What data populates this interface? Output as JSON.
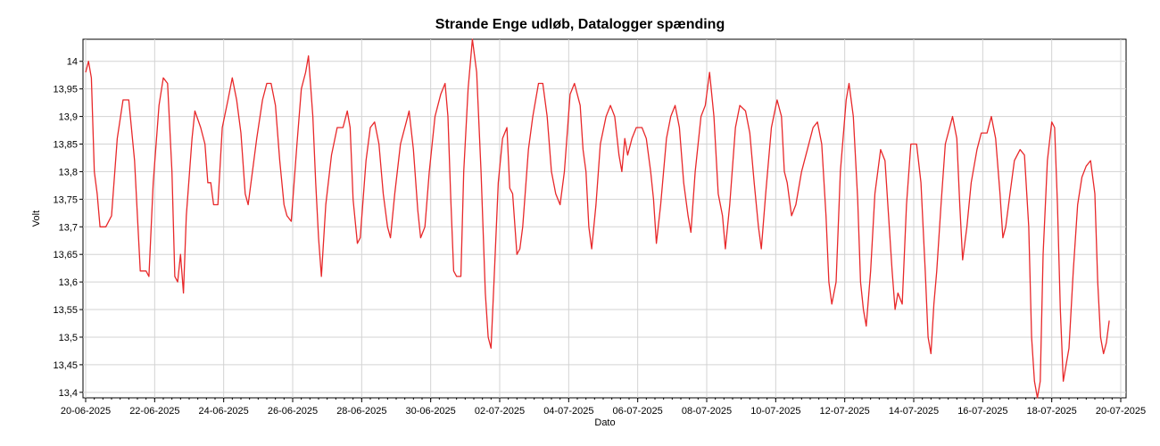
{
  "chart_data": {
    "type": "line",
    "title": "Strande Enge udløb, Datalogger spænding",
    "xlabel": "Dato",
    "ylabel": "Volt",
    "xlim": [
      "2025-06-20",
      "2025-07-20"
    ],
    "ylim": [
      13.39,
      14.04
    ],
    "x_ticks": [
      "20-06-2025",
      "22-06-2025",
      "24-06-2025",
      "26-06-2025",
      "28-06-2025",
      "30-06-2025",
      "02-07-2025",
      "04-07-2025",
      "06-07-2025",
      "08-07-2025",
      "10-07-2025",
      "12-07-2025",
      "14-07-2025",
      "16-07-2025",
      "18-07-2025",
      "20-07-2025"
    ],
    "y_ticks": [
      "14",
      "13,95",
      "13,9",
      "13,85",
      "13,8",
      "13,75",
      "13,7",
      "13,65",
      "13,6",
      "13,55",
      "13,5",
      "13,45",
      "13,4"
    ],
    "grid": true,
    "series": [
      {
        "name": "",
        "color": "#e8282a",
        "points": [
          [
            "2025-06-20 00:00",
            13.98
          ],
          [
            "2025-06-20 02:00",
            14.0
          ],
          [
            "2025-06-20 04:00",
            13.97
          ],
          [
            "2025-06-20 06:00",
            13.8
          ],
          [
            "2025-06-20 08:00",
            13.76
          ],
          [
            "2025-06-20 10:00",
            13.7
          ],
          [
            "2025-06-20 14:00",
            13.7
          ],
          [
            "2025-06-20 18:00",
            13.72
          ],
          [
            "2025-06-20 22:00",
            13.86
          ],
          [
            "2025-06-21 02:00",
            13.93
          ],
          [
            "2025-06-21 06:00",
            13.93
          ],
          [
            "2025-06-21 10:00",
            13.82
          ],
          [
            "2025-06-21 14:00",
            13.62
          ],
          [
            "2025-06-21 18:00",
            13.62
          ],
          [
            "2025-06-21 20:00",
            13.61
          ],
          [
            "2025-06-21 23:00",
            13.78
          ],
          [
            "2025-06-22 03:00",
            13.92
          ],
          [
            "2025-06-22 06:00",
            13.97
          ],
          [
            "2025-06-22 09:00",
            13.96
          ],
          [
            "2025-06-22 12:00",
            13.8
          ],
          [
            "2025-06-22 14:00",
            13.61
          ],
          [
            "2025-06-22 16:00",
            13.6
          ],
          [
            "2025-06-22 18:00",
            13.65
          ],
          [
            "2025-06-22 20:00",
            13.58
          ],
          [
            "2025-06-22 22:00",
            13.72
          ],
          [
            "2025-06-23 02:00",
            13.86
          ],
          [
            "2025-06-23 04:00",
            13.91
          ],
          [
            "2025-06-23 08:00",
            13.88
          ],
          [
            "2025-06-23 11:00",
            13.85
          ],
          [
            "2025-06-23 13:00",
            13.78
          ],
          [
            "2025-06-23 15:00",
            13.78
          ],
          [
            "2025-06-23 17:00",
            13.74
          ],
          [
            "2025-06-23 20:00",
            13.74
          ],
          [
            "2025-06-23 23:00",
            13.88
          ],
          [
            "2025-06-24 03:00",
            13.93
          ],
          [
            "2025-06-24 06:00",
            13.97
          ],
          [
            "2025-06-24 09:00",
            13.93
          ],
          [
            "2025-06-24 12:00",
            13.87
          ],
          [
            "2025-06-24 15:00",
            13.76
          ],
          [
            "2025-06-24 17:00",
            13.74
          ],
          [
            "2025-06-24 20:00",
            13.8
          ],
          [
            "2025-06-24 23:00",
            13.86
          ],
          [
            "2025-06-25 03:00",
            13.93
          ],
          [
            "2025-06-25 06:00",
            13.96
          ],
          [
            "2025-06-25 09:00",
            13.96
          ],
          [
            "2025-06-25 12:00",
            13.92
          ],
          [
            "2025-06-25 15:00",
            13.82
          ],
          [
            "2025-06-25 18:00",
            13.74
          ],
          [
            "2025-06-25 20:00",
            13.72
          ],
          [
            "2025-06-25 23:00",
            13.71
          ],
          [
            "2025-06-26 03:00",
            13.85
          ],
          [
            "2025-06-26 06:00",
            13.95
          ],
          [
            "2025-06-26 09:00",
            13.98
          ],
          [
            "2025-06-26 11:00",
            14.01
          ],
          [
            "2025-06-26 14:00",
            13.9
          ],
          [
            "2025-06-26 16:00",
            13.78
          ],
          [
            "2025-06-26 18:00",
            13.68
          ],
          [
            "2025-06-26 20:00",
            13.61
          ],
          [
            "2025-06-26 23:00",
            13.74
          ],
          [
            "2025-06-27 03:00",
            13.83
          ],
          [
            "2025-06-27 07:00",
            13.88
          ],
          [
            "2025-06-27 11:00",
            13.88
          ],
          [
            "2025-06-27 14:00",
            13.91
          ],
          [
            "2025-06-27 16:00",
            13.88
          ],
          [
            "2025-06-27 18:00",
            13.75
          ],
          [
            "2025-06-27 21:00",
            13.67
          ],
          [
            "2025-06-27 23:00",
            13.68
          ],
          [
            "2025-06-28 03:00",
            13.82
          ],
          [
            "2025-06-28 06:00",
            13.88
          ],
          [
            "2025-06-28 09:00",
            13.89
          ],
          [
            "2025-06-28 12:00",
            13.85
          ],
          [
            "2025-06-28 15:00",
            13.76
          ],
          [
            "2025-06-28 18:00",
            13.7
          ],
          [
            "2025-06-28 20:00",
            13.68
          ],
          [
            "2025-06-28 23:00",
            13.76
          ],
          [
            "2025-06-29 03:00",
            13.85
          ],
          [
            "2025-06-29 07:00",
            13.89
          ],
          [
            "2025-06-29 09:00",
            13.91
          ],
          [
            "2025-06-29 12:00",
            13.84
          ],
          [
            "2025-06-29 15:00",
            13.73
          ],
          [
            "2025-06-29 17:00",
            13.68
          ],
          [
            "2025-06-29 20:00",
            13.7
          ],
          [
            "2025-06-29 23:00",
            13.8
          ],
          [
            "2025-06-30 03:00",
            13.9
          ],
          [
            "2025-06-30 07:00",
            13.94
          ],
          [
            "2025-06-30 10:00",
            13.96
          ],
          [
            "2025-06-30 12:00",
            13.9
          ],
          [
            "2025-06-30 14:00",
            13.75
          ],
          [
            "2025-06-30 16:00",
            13.62
          ],
          [
            "2025-06-30 18:00",
            13.61
          ],
          [
            "2025-06-30 21:00",
            13.61
          ],
          [
            "2025-06-30 23:00",
            13.8
          ],
          [
            "2025-07-01 02:00",
            13.95
          ],
          [
            "2025-07-01 05:00",
            14.04
          ],
          [
            "2025-07-01 08:00",
            13.98
          ],
          [
            "2025-07-01 11:00",
            13.8
          ],
          [
            "2025-07-01 14:00",
            13.58
          ],
          [
            "2025-07-01 16:00",
            13.5
          ],
          [
            "2025-07-01 18:00",
            13.48
          ],
          [
            "2025-07-01 20:00",
            13.6
          ],
          [
            "2025-07-01 23:00",
            13.78
          ],
          [
            "2025-07-02 02:00",
            13.86
          ],
          [
            "2025-07-02 05:00",
            13.88
          ],
          [
            "2025-07-02 07:00",
            13.77
          ],
          [
            "2025-07-02 09:00",
            13.76
          ],
          [
            "2025-07-02 12:00",
            13.65
          ],
          [
            "2025-07-02 14:00",
            13.66
          ],
          [
            "2025-07-02 16:00",
            13.7
          ],
          [
            "2025-07-02 20:00",
            13.84
          ],
          [
            "2025-07-02 23:00",
            13.9
          ],
          [
            "2025-07-03 03:00",
            13.96
          ],
          [
            "2025-07-03 06:00",
            13.96
          ],
          [
            "2025-07-03 09:00",
            13.9
          ],
          [
            "2025-07-03 12:00",
            13.8
          ],
          [
            "2025-07-03 15:00",
            13.76
          ],
          [
            "2025-07-03 18:00",
            13.74
          ],
          [
            "2025-07-03 21:00",
            13.8
          ],
          [
            "2025-07-04 01:00",
            13.94
          ],
          [
            "2025-07-04 04:00",
            13.96
          ],
          [
            "2025-07-04 08:00",
            13.92
          ],
          [
            "2025-07-04 10:00",
            13.84
          ],
          [
            "2025-07-04 12:00",
            13.8
          ],
          [
            "2025-07-04 14:00",
            13.7
          ],
          [
            "2025-07-04 16:00",
            13.66
          ],
          [
            "2025-07-04 19:00",
            13.74
          ],
          [
            "2025-07-04 22:00",
            13.85
          ],
          [
            "2025-07-05 02:00",
            13.9
          ],
          [
            "2025-07-05 05:00",
            13.92
          ],
          [
            "2025-07-05 08:00",
            13.9
          ],
          [
            "2025-07-05 11:00",
            13.83
          ],
          [
            "2025-07-05 13:00",
            13.8
          ],
          [
            "2025-07-05 15:00",
            13.86
          ],
          [
            "2025-07-05 17:00",
            13.83
          ],
          [
            "2025-07-05 20:00",
            13.86
          ],
          [
            "2025-07-05 23:00",
            13.88
          ],
          [
            "2025-07-06 03:00",
            13.88
          ],
          [
            "2025-07-06 06:00",
            13.86
          ],
          [
            "2025-07-06 09:00",
            13.8
          ],
          [
            "2025-07-06 11:00",
            13.75
          ],
          [
            "2025-07-06 13:00",
            13.67
          ],
          [
            "2025-07-06 16:00",
            13.74
          ],
          [
            "2025-07-06 20:00",
            13.86
          ],
          [
            "2025-07-06 23:00",
            13.9
          ],
          [
            "2025-07-07 02:00",
            13.92
          ],
          [
            "2025-07-07 05:00",
            13.88
          ],
          [
            "2025-07-07 08:00",
            13.78
          ],
          [
            "2025-07-07 11:00",
            13.72
          ],
          [
            "2025-07-07 13:00",
            13.69
          ],
          [
            "2025-07-07 16:00",
            13.8
          ],
          [
            "2025-07-07 20:00",
            13.9
          ],
          [
            "2025-07-07 23:00",
            13.92
          ],
          [
            "2025-07-08 02:00",
            13.98
          ],
          [
            "2025-07-08 05:00",
            13.9
          ],
          [
            "2025-07-08 08:00",
            13.76
          ],
          [
            "2025-07-08 11:00",
            13.72
          ],
          [
            "2025-07-08 13:00",
            13.66
          ],
          [
            "2025-07-08 16:00",
            13.74
          ],
          [
            "2025-07-08 20:00",
            13.88
          ],
          [
            "2025-07-08 23:00",
            13.92
          ],
          [
            "2025-07-09 03:00",
            13.91
          ],
          [
            "2025-07-09 06:00",
            13.87
          ],
          [
            "2025-07-09 09:00",
            13.78
          ],
          [
            "2025-07-09 12:00",
            13.7
          ],
          [
            "2025-07-09 14:00",
            13.66
          ],
          [
            "2025-07-09 17:00",
            13.76
          ],
          [
            "2025-07-09 21:00",
            13.88
          ],
          [
            "2025-07-10 01:00",
            13.93
          ],
          [
            "2025-07-10 04:00",
            13.9
          ],
          [
            "2025-07-10 06:00",
            13.8
          ],
          [
            "2025-07-10 08:00",
            13.78
          ],
          [
            "2025-07-10 11:00",
            13.72
          ],
          [
            "2025-07-10 14:00",
            13.74
          ],
          [
            "2025-07-10 18:00",
            13.8
          ],
          [
            "2025-07-10 22:00",
            13.84
          ],
          [
            "2025-07-11 02:00",
            13.88
          ],
          [
            "2025-07-11 05:00",
            13.89
          ],
          [
            "2025-07-11 08:00",
            13.85
          ],
          [
            "2025-07-11 11:00",
            13.72
          ],
          [
            "2025-07-11 13:00",
            13.6
          ],
          [
            "2025-07-11 15:00",
            13.56
          ],
          [
            "2025-07-11 18:00",
            13.6
          ],
          [
            "2025-07-11 21:00",
            13.8
          ],
          [
            "2025-07-12 01:00",
            13.93
          ],
          [
            "2025-07-12 03:00",
            13.96
          ],
          [
            "2025-07-12 06:00",
            13.9
          ],
          [
            "2025-07-12 09:00",
            13.75
          ],
          [
            "2025-07-12 11:00",
            13.6
          ],
          [
            "2025-07-12 13:00",
            13.55
          ],
          [
            "2025-07-12 15:00",
            13.52
          ],
          [
            "2025-07-12 18:00",
            13.62
          ],
          [
            "2025-07-12 21:00",
            13.76
          ],
          [
            "2025-07-13 01:00",
            13.84
          ],
          [
            "2025-07-13 04:00",
            13.82
          ],
          [
            "2025-07-13 07:00",
            13.7
          ],
          [
            "2025-07-13 09:00",
            13.62
          ],
          [
            "2025-07-13 11:00",
            13.55
          ],
          [
            "2025-07-13 13:00",
            13.58
          ],
          [
            "2025-07-13 16:00",
            13.56
          ],
          [
            "2025-07-13 19:00",
            13.74
          ],
          [
            "2025-07-13 22:00",
            13.85
          ],
          [
            "2025-07-14 02:00",
            13.85
          ],
          [
            "2025-07-14 05:00",
            13.78
          ],
          [
            "2025-07-14 08:00",
            13.62
          ],
          [
            "2025-07-14 10:00",
            13.5
          ],
          [
            "2025-07-14 12:00",
            13.47
          ],
          [
            "2025-07-14 14:00",
            13.56
          ],
          [
            "2025-07-14 16:00",
            13.62
          ],
          [
            "2025-07-14 19:00",
            13.74
          ],
          [
            "2025-07-14 22:00",
            13.85
          ],
          [
            "2025-07-15 01:00",
            13.88
          ],
          [
            "2025-07-15 03:00",
            13.9
          ],
          [
            "2025-07-15 06:00",
            13.86
          ],
          [
            "2025-07-15 08:00",
            13.74
          ],
          [
            "2025-07-15 10:00",
            13.64
          ],
          [
            "2025-07-15 13:00",
            13.7
          ],
          [
            "2025-07-15 16:00",
            13.78
          ],
          [
            "2025-07-15 20:00",
            13.84
          ],
          [
            "2025-07-15 23:00",
            13.87
          ],
          [
            "2025-07-16 03:00",
            13.87
          ],
          [
            "2025-07-16 06:00",
            13.9
          ],
          [
            "2025-07-16 09:00",
            13.86
          ],
          [
            "2025-07-16 12:00",
            13.76
          ],
          [
            "2025-07-16 14:00",
            13.68
          ],
          [
            "2025-07-16 16:00",
            13.7
          ],
          [
            "2025-07-16 19:00",
            13.76
          ],
          [
            "2025-07-16 22:00",
            13.82
          ],
          [
            "2025-07-17 02:00",
            13.84
          ],
          [
            "2025-07-17 05:00",
            13.83
          ],
          [
            "2025-07-17 08:00",
            13.7
          ],
          [
            "2025-07-17 10:00",
            13.5
          ],
          [
            "2025-07-17 12:00",
            13.42
          ],
          [
            "2025-07-17 14:00",
            13.39
          ],
          [
            "2025-07-17 16:00",
            13.42
          ],
          [
            "2025-07-17 18:00",
            13.65
          ],
          [
            "2025-07-17 21:00",
            13.82
          ],
          [
            "2025-07-18 00:00",
            13.89
          ],
          [
            "2025-07-18 02:00",
            13.88
          ],
          [
            "2025-07-18 04:00",
            13.74
          ],
          [
            "2025-07-18 06:00",
            13.55
          ],
          [
            "2025-07-18 08:00",
            13.42
          ],
          [
            "2025-07-18 10:00",
            13.45
          ],
          [
            "2025-07-18 12:00",
            13.48
          ],
          [
            "2025-07-18 15:00",
            13.62
          ],
          [
            "2025-07-18 18:00",
            13.74
          ],
          [
            "2025-07-18 21:00",
            13.79
          ],
          [
            "2025-07-19 00:00",
            13.81
          ],
          [
            "2025-07-19 03:00",
            13.82
          ],
          [
            "2025-07-19 06:00",
            13.76
          ],
          [
            "2025-07-19 08:00",
            13.6
          ],
          [
            "2025-07-19 10:00",
            13.5
          ],
          [
            "2025-07-19 12:00",
            13.47
          ],
          [
            "2025-07-19 14:00",
            13.49
          ],
          [
            "2025-07-19 16:00",
            13.53
          ]
        ]
      }
    ]
  }
}
